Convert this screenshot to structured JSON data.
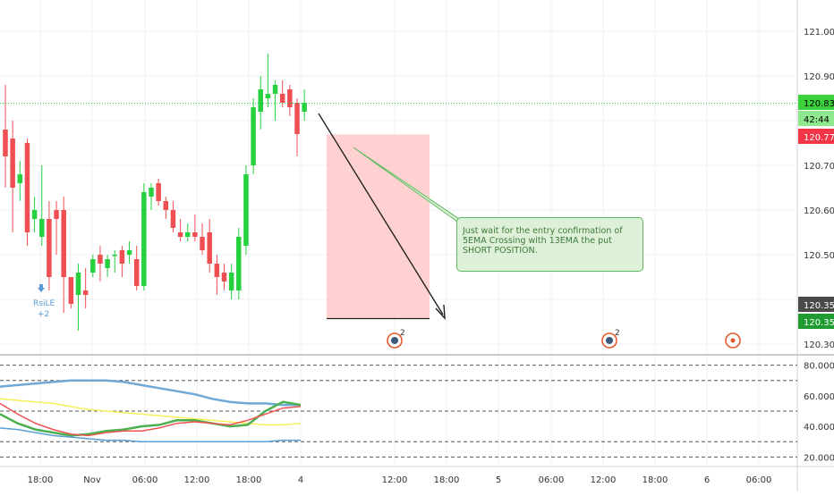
{
  "colors": {
    "up": "#26d13f",
    "down": "#ef4f52",
    "current_price_bg": "#3cd23c",
    "red_badge_bg": "#f23645",
    "dark_badge_bg": "#4a4a4a",
    "green_badge_bg": "#1e9c32",
    "short_zone_fill": "#ffc9c9",
    "note_border": "#5cb85c",
    "note_bg": "#dff0d8",
    "note_text": "#3c7a3c",
    "axis_text": "#333333",
    "grid": "#eef0f3",
    "indicator_blue": "#6fa8d6",
    "indicator_yellow": "#f5f05a",
    "indicator_green": "#4caf50",
    "indicator_red": "#ef5350",
    "indicator_blue_dark": "#5a9fd4",
    "event_icon": "#e4572e"
  },
  "price_axis": {
    "labels": [
      "121.000",
      "120.900",
      "120.800",
      "120.700",
      "120.600",
      "120.500",
      "120.400",
      "120.300"
    ],
    "badges": [
      {
        "name": "current-price-badge",
        "text": "120.839",
        "kind": "green"
      },
      {
        "name": "countdown-badge",
        "text": "42:44",
        "kind": "green-light"
      },
      {
        "name": "red-price-badge",
        "text": "120.772",
        "kind": "red"
      },
      {
        "name": "dark-price-badge",
        "text": "120.357",
        "kind": "dark"
      },
      {
        "name": "green-price-badge",
        "text": "120.356",
        "kind": "green-dark"
      }
    ]
  },
  "indicator_axis": {
    "labels": [
      "80.000",
      "60.000",
      "40.000",
      "20.000"
    ]
  },
  "time_axis": {
    "labels": [
      "18:00",
      "Nov",
      "06:00",
      "12:00",
      "18:00",
      "4",
      "12:00",
      "18:00",
      "5",
      "06:00",
      "12:00",
      "18:00",
      "6",
      "06:00"
    ]
  },
  "signal_label": {
    "name": "RsiLE",
    "count": "+2"
  },
  "events": [
    {
      "badge": "2"
    },
    {
      "badge": "2"
    },
    {
      "badge": ""
    }
  ],
  "note": {
    "text": "Just wait for the entry confirmation of 5EMA Crossing with 13EMA the put SHORT POSITION."
  },
  "chart_data": {
    "type": "candlestick",
    "ylim": [
      120.28,
      121.07
    ],
    "series": [
      {
        "name": "",
        "ohlc": [
          [
            120.78,
            120.88,
            120.65,
            120.72
          ],
          [
            120.76,
            120.8,
            120.55,
            120.65
          ],
          [
            120.66,
            120.71,
            120.62,
            120.68
          ],
          [
            120.75,
            120.76,
            120.52,
            120.55
          ],
          [
            120.58,
            120.63,
            120.55,
            120.6
          ],
          [
            120.54,
            120.7,
            120.52,
            120.58
          ],
          [
            120.58,
            120.62,
            120.42,
            120.45
          ],
          [
            120.6,
            120.62,
            120.5,
            120.58
          ],
          [
            120.6,
            120.63,
            120.37,
            120.45
          ],
          [
            120.45,
            120.45,
            120.38,
            120.39
          ],
          [
            120.41,
            120.48,
            120.33,
            120.46
          ],
          [
            120.42,
            120.47,
            120.38,
            120.41
          ],
          [
            120.46,
            120.5,
            120.45,
            120.49
          ],
          [
            120.5,
            120.52,
            120.44,
            120.48
          ],
          [
            120.47,
            120.5,
            120.45,
            120.49
          ],
          [
            120.5,
            120.51,
            120.46,
            120.5
          ],
          [
            120.51,
            120.52,
            120.45,
            120.48
          ],
          [
            120.5,
            120.53,
            120.48,
            120.51
          ],
          [
            120.49,
            120.52,
            120.42,
            120.43
          ],
          [
            120.43,
            120.66,
            120.42,
            120.64
          ],
          [
            120.63,
            120.66,
            120.6,
            120.65
          ],
          [
            120.66,
            120.67,
            120.61,
            120.62
          ],
          [
            120.62,
            120.63,
            120.58,
            120.6
          ],
          [
            120.6,
            120.62,
            120.55,
            120.56
          ],
          [
            120.55,
            120.58,
            120.53,
            120.54
          ],
          [
            120.54,
            120.57,
            120.53,
            120.55
          ],
          [
            120.55,
            120.59,
            120.53,
            120.54
          ],
          [
            120.54,
            120.57,
            120.5,
            120.51
          ],
          [
            120.55,
            120.58,
            120.46,
            120.48
          ],
          [
            120.48,
            120.5,
            120.41,
            120.45
          ],
          [
            120.46,
            120.48,
            120.42,
            120.44
          ],
          [
            120.42,
            120.48,
            120.4,
            120.46
          ],
          [
            120.42,
            120.56,
            120.4,
            120.54
          ],
          [
            120.52,
            120.7,
            120.5,
            120.68
          ],
          [
            120.7,
            120.85,
            120.68,
            120.83
          ],
          [
            120.82,
            120.9,
            120.78,
            120.87
          ],
          [
            120.85,
            120.95,
            120.83,
            120.86
          ],
          [
            120.86,
            120.89,
            120.8,
            120.88
          ],
          [
            120.86,
            120.89,
            120.83,
            120.84
          ],
          [
            120.87,
            120.88,
            120.81,
            120.83
          ],
          [
            120.84,
            120.85,
            120.72,
            120.77
          ],
          [
            120.82,
            120.87,
            120.8,
            120.84
          ]
        ]
      }
    ],
    "levels": {
      "current_price": 120.839
    },
    "short_zone": {
      "top": 120.769,
      "bottom": 120.357
    },
    "indicator": {
      "ylim": [
        15,
        85
      ],
      "levels": [
        80,
        70,
        50,
        30,
        20
      ],
      "lines": [
        {
          "name": "",
          "color": "blue",
          "values": [
            66,
            67,
            68,
            69,
            70,
            70,
            70,
            69,
            67,
            65,
            63,
            61,
            58,
            56,
            55,
            55,
            54,
            54
          ]
        },
        {
          "name": "",
          "color": "yellow",
          "values": [
            58,
            57,
            56,
            55,
            53,
            51,
            50,
            49,
            48,
            47,
            46,
            45,
            44,
            43,
            42,
            41,
            41,
            42
          ]
        },
        {
          "name": "",
          "color": "green",
          "values": [
            48,
            42,
            38,
            36,
            34,
            35,
            37,
            38,
            40,
            41,
            44,
            44,
            42,
            40,
            41,
            50,
            56,
            54
          ]
        },
        {
          "name": "",
          "color": "red",
          "values": [
            55,
            48,
            42,
            38,
            35,
            34,
            36,
            37,
            37,
            39,
            42,
            43,
            42,
            41,
            44,
            48,
            52,
            53
          ]
        },
        {
          "name": "",
          "color": "blue-dark",
          "values": [
            39,
            38,
            36,
            34,
            33,
            32,
            31,
            31,
            30,
            30,
            30,
            30,
            30,
            30,
            30,
            30,
            31,
            31
          ]
        }
      ]
    }
  }
}
